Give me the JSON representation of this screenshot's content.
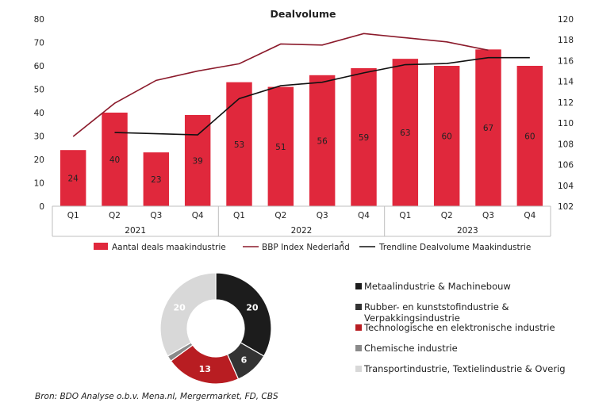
{
  "chart_data": [
    {
      "type": "bar",
      "title": "Dealvolume",
      "categories": [
        "Q1",
        "Q2",
        "Q3",
        "Q4",
        "Q1",
        "Q2",
        "Q3",
        "Q4",
        "Q1",
        "Q2",
        "Q3",
        "Q4"
      ],
      "groups": [
        {
          "label": "2021",
          "span": 4
        },
        {
          "label": "2022",
          "span": 4
        },
        {
          "label": "2023",
          "span": 4
        }
      ],
      "y_left": {
        "min": 0,
        "max": 80,
        "step": 10
      },
      "y_right": {
        "min": 102,
        "max": 120,
        "step": 2
      },
      "series": [
        {
          "name": "Aantal deals maakindustrie",
          "type": "bar",
          "axis": "left",
          "color": "#e0283c",
          "values": [
            24,
            40,
            23,
            39,
            53,
            51,
            56,
            59,
            63,
            60,
            67,
            60
          ]
        },
        {
          "name": "BBP Index Nederland",
          "superscript": "5",
          "type": "line",
          "axis": "right",
          "color": "#8b1a2b",
          "values": [
            108.7,
            111.9,
            114.1,
            115.0,
            115.7,
            117.6,
            117.5,
            118.6,
            118.2,
            117.8,
            117.0,
            null
          ]
        },
        {
          "name": "Trendline Dealvolume Maakindustrie",
          "type": "line",
          "axis": "left",
          "color": "#111111",
          "values": [
            null,
            31.5,
            31.0,
            30.5,
            46.0,
            51.5,
            53.0,
            57.0,
            60.5,
            61.0,
            63.5,
            63.5
          ]
        }
      ],
      "legend_position": "bottom",
      "grid": false
    },
    {
      "type": "pie",
      "variant": "donut",
      "slices": [
        {
          "label": "Metaalindustrie & Machinebouw",
          "value": 20,
          "color": "#1c1c1c",
          "show_label": true
        },
        {
          "label": "Rubber- en kunststofindustrie & Verpakkingsindustrie",
          "value": 6,
          "color": "#333333",
          "show_label": true
        },
        {
          "label": "Technologische en elektronische industrie",
          "value": 13,
          "color": "#b81d22",
          "show_label": true
        },
        {
          "label": "Chemische industrie",
          "value": 1,
          "color": "#8a8a8a",
          "show_label": false
        },
        {
          "label": "Transportindustrie, Textielindustrie & Overig",
          "value": 20,
          "color": "#d8d8d8",
          "show_label": true
        }
      ],
      "legend_position": "right"
    }
  ],
  "source": "Bron: BDO Analyse o.b.v. Mena.nl, Mergermarket, FD, CBS"
}
